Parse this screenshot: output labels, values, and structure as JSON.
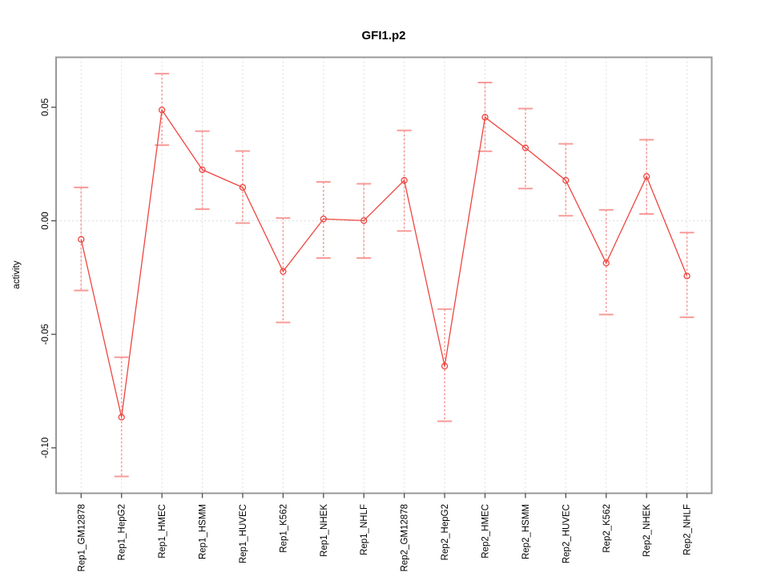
{
  "chart_data": {
    "type": "line",
    "title": "GFI1.p2",
    "xlabel": "",
    "ylabel": "activity",
    "categories": [
      "Rep1_GM12878",
      "Rep1_HepG2",
      "Rep1_HMEC",
      "Rep1_HSMM",
      "Rep1_HUVEC",
      "Rep1_K562",
      "Rep1_NHEK",
      "Rep1_NHLF",
      "Rep2_GM12878",
      "Rep2_HepG2",
      "Rep2_HMEC",
      "Rep2_HSMM",
      "Rep2_HUVEC",
      "Rep2_K562",
      "Rep2_NHEK",
      "Rep2_NHLF"
    ],
    "series": [
      {
        "name": "activity",
        "values": [
          -0.0082,
          -0.0865,
          0.0488,
          0.0225,
          0.0147,
          -0.0223,
          0.0008,
          0.0001,
          0.0178,
          -0.064,
          0.0456,
          0.0321,
          0.0178,
          -0.0186,
          0.0195,
          -0.0243
        ],
        "error_upper": [
          0.0147,
          -0.0601,
          0.0648,
          0.0395,
          0.0307,
          0.0012,
          0.0171,
          0.0163,
          0.0398,
          -0.0389,
          0.0609,
          0.0494,
          0.0339,
          0.0048,
          0.0357,
          -0.0052
        ],
        "error_lower": [
          -0.0307,
          -0.1126,
          0.0333,
          0.0051,
          -0.001,
          -0.0448,
          -0.0164,
          -0.0164,
          -0.0045,
          -0.0883,
          0.0306,
          0.0142,
          0.0022,
          -0.0413,
          0.003,
          -0.0425
        ]
      }
    ],
    "ylim": [
      -0.12,
      0.072
    ],
    "yticks": [
      0.05,
      0.0,
      -0.05,
      -0.1
    ],
    "ytick_labels": [
      "0.05",
      "0.00",
      "-0.05",
      "-0.10"
    ],
    "xtick_label_rotation_deg": -90,
    "grid": {
      "vertical_dotted_per_category": true,
      "horizontal_dotted_at_zero": true
    },
    "legend": "none",
    "marker": "open-circle",
    "colors": {
      "series": "#ee453f",
      "error_bar": "#f79b98",
      "grid": "#dcdcdc",
      "frame": "#999999",
      "tick": "#4d4d4d",
      "text": "#000000",
      "background": "#ffffff"
    }
  }
}
